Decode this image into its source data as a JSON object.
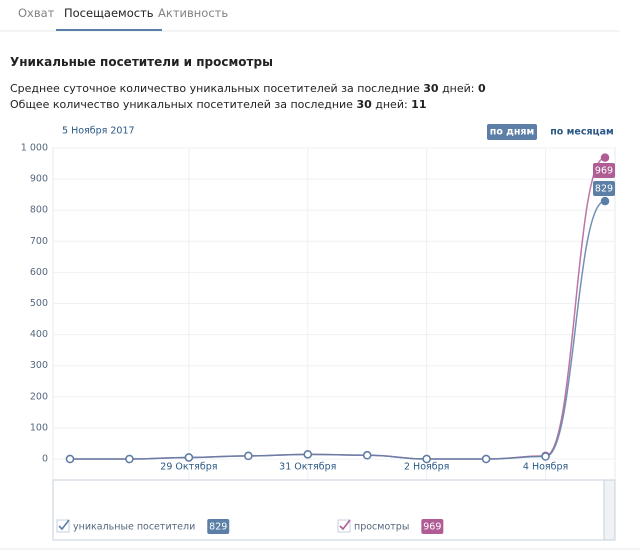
{
  "tabs": [
    "Охват",
    "Посещаемость",
    "Активность"
  ],
  "active_tab": 1,
  "heading": "Уникальные посетители и просмотры",
  "stats": [
    {
      "text": "Среднее суточное количество уникальных посетителей за последние",
      "days": "30",
      "suffix": "дней:",
      "value": 0
    },
    {
      "text": "Общее количество уникальных посетителей за последние",
      "days": "30",
      "suffix": "дней:",
      "value": 11
    }
  ],
  "chart_data": {
    "type": "line",
    "date_label": "5 Ноября 2017",
    "buttons": [
      "по дням",
      "по месяцам"
    ],
    "active_button": 0,
    "categories": [
      null,
      null,
      "29 Октября",
      null,
      "31 Октября",
      null,
      "2 Ноября",
      null,
      "4 Ноября",
      null
    ],
    "series": [
      {
        "name": "уникальные посетители",
        "color": "#5b7fa6",
        "values": [
          0,
          0,
          5,
          10,
          15,
          12,
          0,
          0,
          8,
          829
        ]
      },
      {
        "name": "просмотры",
        "color": "#b05d96",
        "values": [
          0,
          0,
          5,
          10,
          15,
          12,
          0,
          0,
          10,
          969
        ]
      }
    ],
    "ylim": [
      0,
      1000
    ],
    "yticks": [
      0,
      100,
      200,
      300,
      400,
      500,
      600,
      700,
      800,
      900,
      {
        "value": 1000,
        "label": "1 000"
      }
    ],
    "grid": true
  }
}
